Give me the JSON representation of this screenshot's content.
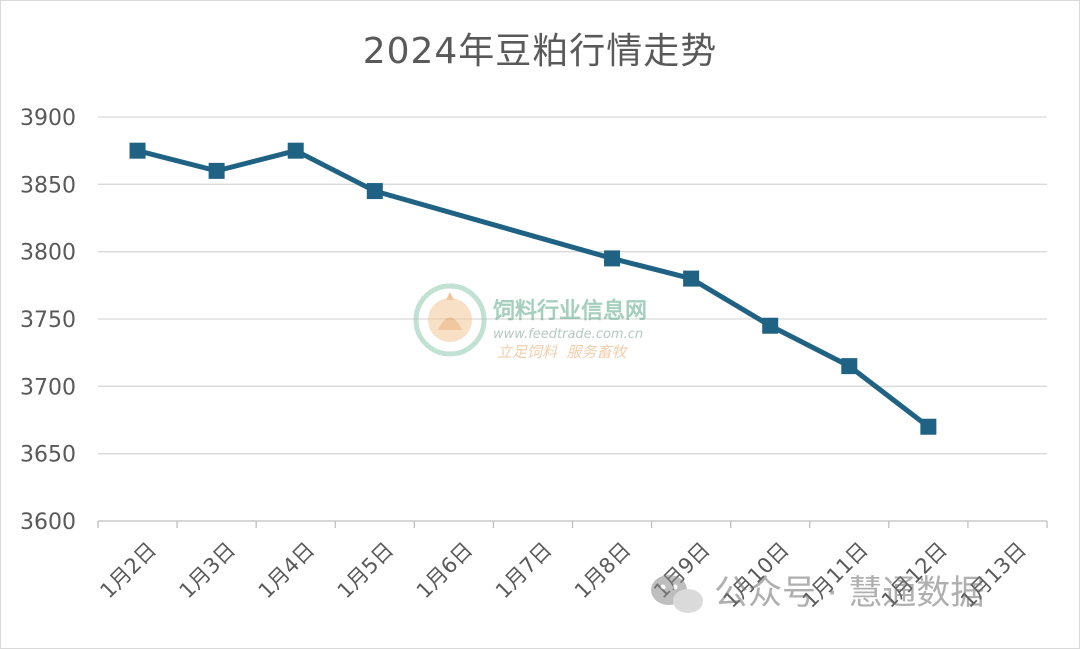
{
  "chart_data": {
    "type": "line",
    "title": "2024年豆粕行情走势",
    "xlabel": "",
    "ylabel": "",
    "categories": [
      "1月2日",
      "1月3日",
      "1月4日",
      "1月5日",
      "1月6日",
      "1月7日",
      "1月8日",
      "1月9日",
      "1月10日",
      "1月11日",
      "1月12日",
      "1月13日"
    ],
    "series": [
      {
        "values": [
          3875,
          3860,
          3875,
          3845,
          null,
          null,
          3795,
          3780,
          3745,
          3715,
          3670,
          null
        ]
      }
    ],
    "ylim": [
      3600,
      3900
    ],
    "yticks": [
      3600,
      3650,
      3700,
      3750,
      3800,
      3850,
      3900
    ],
    "grid": true,
    "colors": {
      "line": "#1f6284",
      "grid": "#d9d9d9",
      "axis_text": "#595959"
    }
  },
  "watermarks": {
    "feed_site_name": "饲料行业信息网",
    "feed_site_url": "www.feedtrade.com.cn",
    "feed_site_slogan": "立足饲料  服务畜牧",
    "wechat_label": "公众号 · 慧通数据"
  }
}
